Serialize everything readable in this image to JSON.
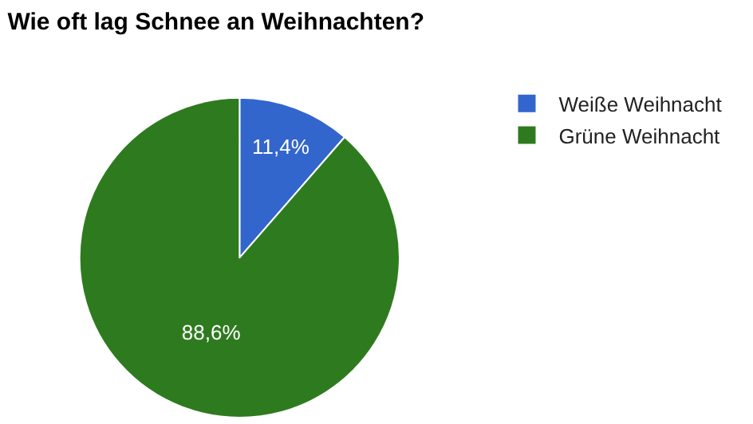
{
  "chart_data": {
    "type": "pie",
    "title": "Wie oft lag Schnee an Weihnachten?",
    "categories": [
      "Weiße Weihnacht",
      "Grüne Weihnacht"
    ],
    "values": [
      11.4,
      88.6
    ],
    "colors": [
      "#3366cc",
      "#2e7b1f"
    ],
    "value_labels": [
      "11,4%",
      "88,6%"
    ],
    "legend": "top right"
  }
}
